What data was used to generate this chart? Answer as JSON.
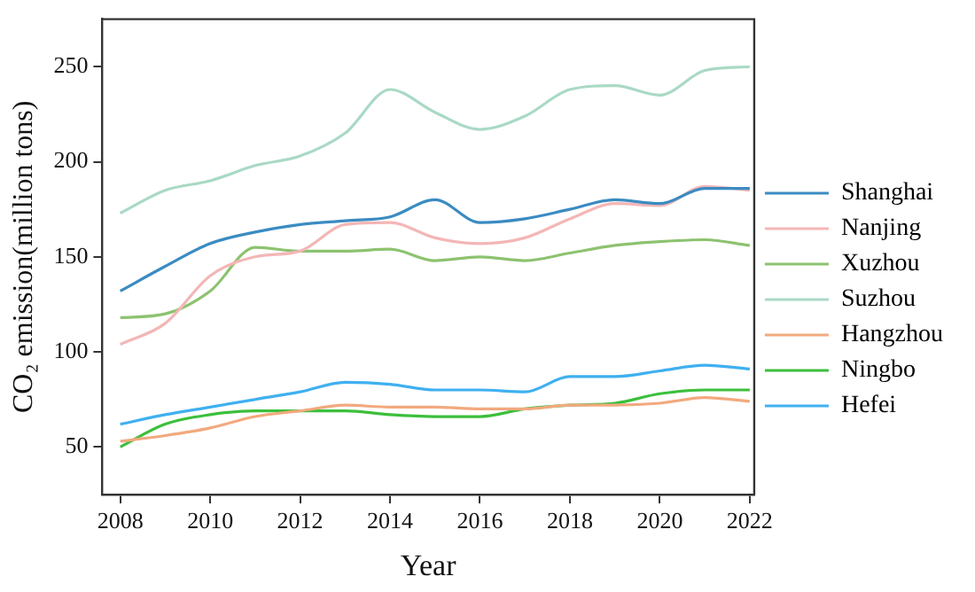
{
  "chart_data": {
    "type": "line",
    "xlabel": "Year",
    "ylabel": "CO₂ emission(million tons)",
    "x": [
      2008,
      2009,
      2010,
      2011,
      2012,
      2013,
      2014,
      2015,
      2016,
      2017,
      2018,
      2019,
      2020,
      2021,
      2022
    ],
    "xlim": [
      2007.6,
      2022.1
    ],
    "xticks": [
      2008,
      2010,
      2012,
      2014,
      2016,
      2018,
      2020,
      2022
    ],
    "ylim": [
      25,
      275
    ],
    "yticks": [
      50,
      100,
      150,
      200,
      250
    ],
    "grid": false,
    "legend": "right",
    "marker": "none",
    "line_style": "solid",
    "series": [
      {
        "name": "Shanghai",
        "color": "#3b8bc2",
        "values": [
          132,
          145,
          157,
          163,
          167,
          169,
          171,
          180,
          168,
          170,
          175,
          180,
          178,
          186,
          186
        ]
      },
      {
        "name": "Nanjing",
        "color": "#f4b6b6",
        "values": [
          104,
          115,
          140,
          150,
          153,
          167,
          168,
          160,
          157,
          160,
          170,
          178,
          177,
          187,
          185
        ]
      },
      {
        "name": "Xuzhou",
        "color": "#8dc26f",
        "values": [
          118,
          120,
          132,
          155,
          153,
          153,
          154,
          148,
          150,
          148,
          152,
          156,
          158,
          159,
          156
        ]
      },
      {
        "name": "Suzhou",
        "color": "#a9d9c5",
        "values": [
          173,
          185,
          190,
          198,
          203,
          215,
          238,
          226,
          217,
          224,
          238,
          240,
          235,
          248,
          250
        ]
      },
      {
        "name": "Hangzhou",
        "color": "#f2a97e",
        "values": [
          53,
          56,
          60,
          66,
          69,
          72,
          71,
          71,
          70,
          70,
          72,
          72,
          73,
          76,
          74
        ]
      },
      {
        "name": "Ningbo",
        "color": "#3cbf3c",
        "values": [
          50,
          62,
          67,
          69,
          69,
          69,
          67,
          66,
          66,
          70,
          72,
          73,
          78,
          80,
          80
        ]
      },
      {
        "name": "Hefei",
        "color": "#3fb0f0",
        "values": [
          62,
          67,
          71,
          75,
          79,
          84,
          83,
          80,
          80,
          79,
          87,
          87,
          90,
          93,
          91
        ]
      }
    ]
  }
}
